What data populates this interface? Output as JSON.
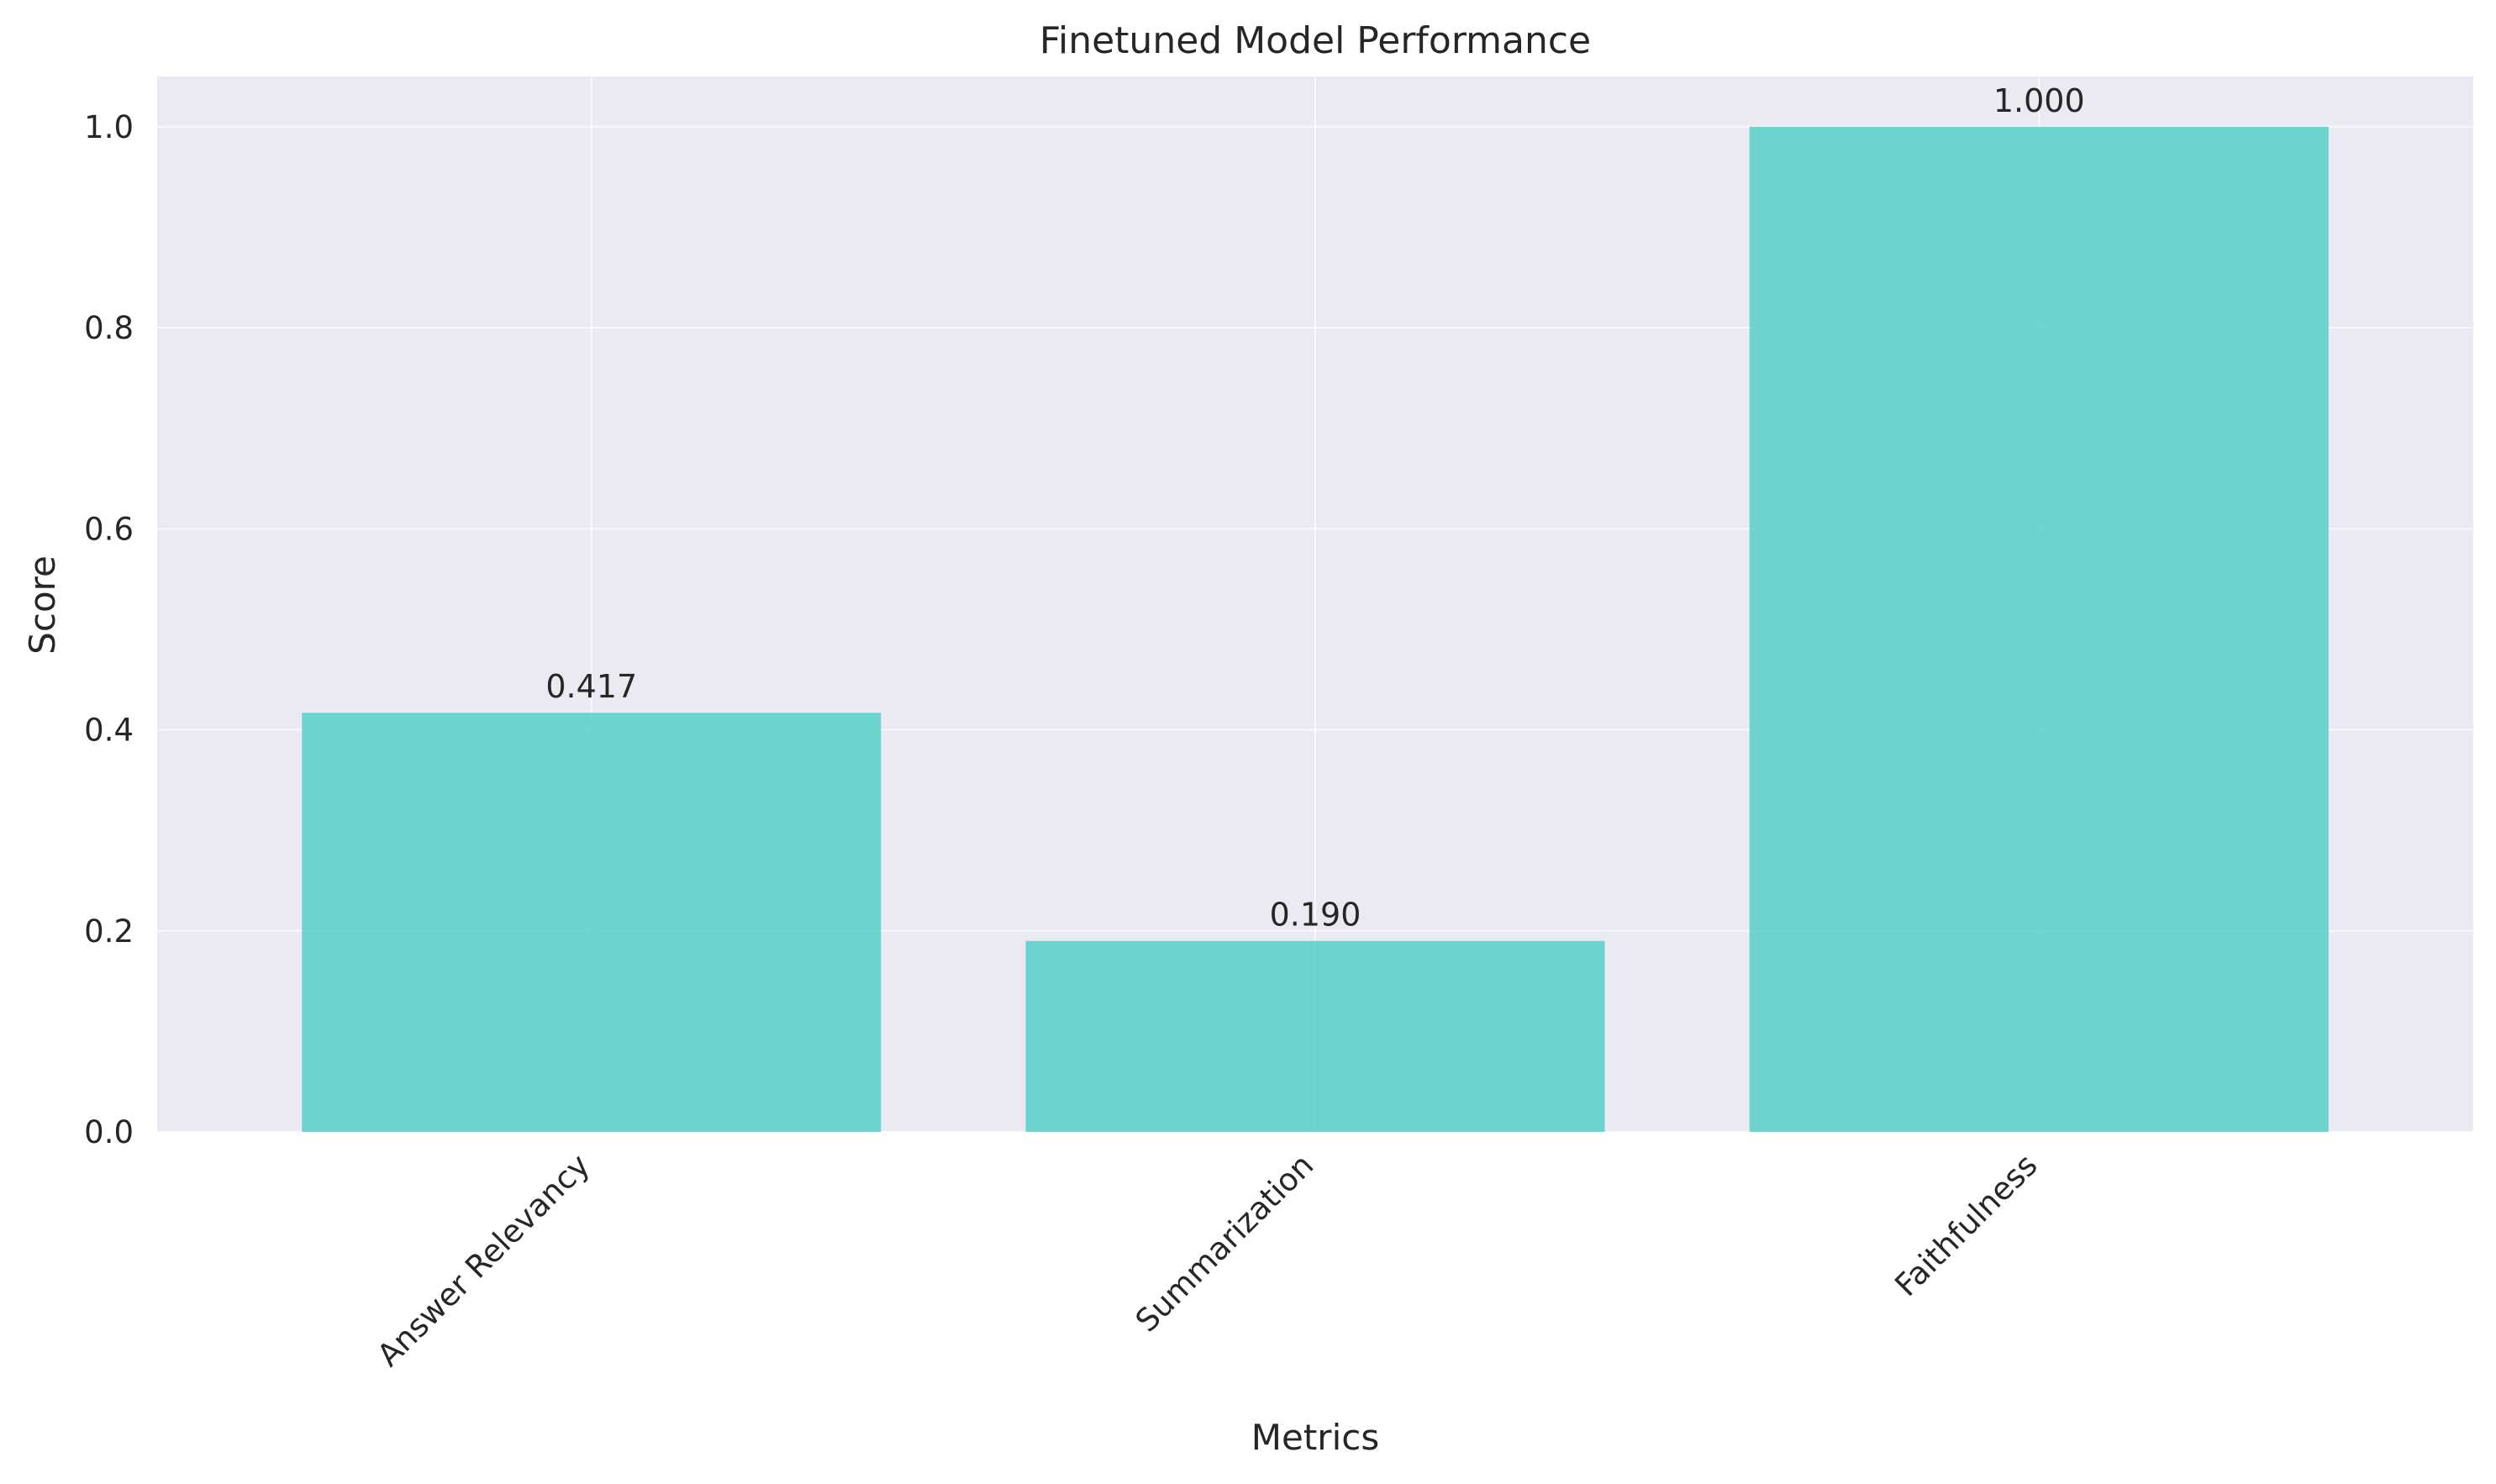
{
  "chart_data": {
    "type": "bar",
    "title": "Finetuned Model Performance",
    "xlabel": "Metrics",
    "ylabel": "Score",
    "categories": [
      "Answer Relevancy",
      "Summarization",
      "Faithfulness"
    ],
    "values": [
      0.417,
      0.19,
      1.0
    ],
    "value_labels": [
      "0.417",
      "0.190",
      "1.000"
    ],
    "ylim": [
      0,
      1.05
    ],
    "yticks": [
      0.0,
      0.2,
      0.4,
      0.6,
      0.8,
      1.0
    ],
    "ytick_labels": [
      "0.0",
      "0.2",
      "0.4",
      "0.6",
      "0.8",
      "1.0"
    ],
    "grid": true,
    "x_tick_rotation_deg": -45,
    "colors": {
      "bar": "#4ecdc4",
      "plot_background": "#eaeaf2",
      "grid": "#ffffff",
      "text": "#262626"
    }
  }
}
